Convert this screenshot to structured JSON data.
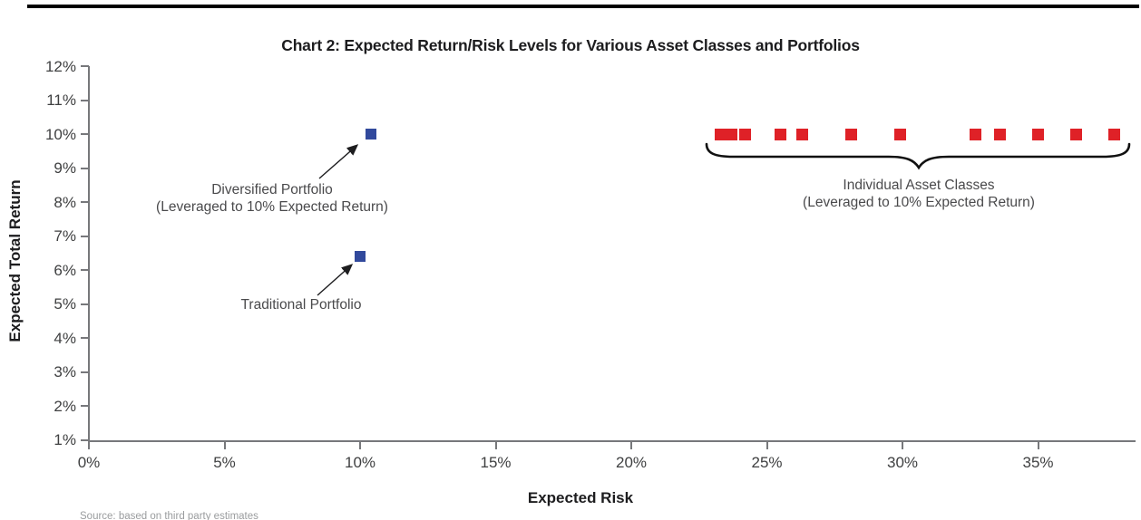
{
  "title": "Chart 2: Expected Return/Risk Levels for Various Asset Classes and Portfolios",
  "source_note": "Source: based on third party estimates",
  "colors": {
    "blue_marker": "#31499c",
    "red_marker": "#df2127",
    "axis_line": "#77787b",
    "tick_text": "#3f4041",
    "heading_text": "#1d1d1f",
    "annotation_text": "#4a4a4c",
    "source_text": "#9a9c9e",
    "top_rule": "#000000"
  },
  "chart_data": {
    "type": "scatter",
    "title": "Chart 2: Expected Return/Risk Levels for Various Asset Classes and Portfolios",
    "xlabel": "Expected Risk",
    "ylabel": "Expected Total Return",
    "xlim": [
      0,
      38.6
    ],
    "ylim": [
      1,
      12
    ],
    "grid": false,
    "legend": false,
    "x_axis": {
      "ticks": [
        {
          "value": 0,
          "label": "0%"
        },
        {
          "value": 5,
          "label": "5%"
        },
        {
          "value": 10,
          "label": "10%"
        },
        {
          "value": 15,
          "label": "15%"
        },
        {
          "value": 20,
          "label": "20%"
        },
        {
          "value": 25,
          "label": "25%"
        },
        {
          "value": 30,
          "label": "30%"
        },
        {
          "value": 35,
          "label": "35%"
        }
      ]
    },
    "y_axis": {
      "ticks": [
        {
          "value": 12,
          "label": "12%"
        },
        {
          "value": 11,
          "label": "11%"
        },
        {
          "value": 10,
          "label": "10%"
        },
        {
          "value": 9,
          "label": "9%"
        },
        {
          "value": 8,
          "label": "8%"
        },
        {
          "value": 7,
          "label": "7%"
        },
        {
          "value": 6,
          "label": "6%"
        },
        {
          "value": 5,
          "label": "5%"
        },
        {
          "value": 4,
          "label": "4%"
        },
        {
          "value": 3,
          "label": "3%"
        },
        {
          "value": 2,
          "label": "2%"
        },
        {
          "value": 1,
          "label": "1%"
        }
      ]
    },
    "series": [
      {
        "name": "Diversified Portfolio (Leveraged to 10% Expected Return)",
        "marker": "square",
        "color": "#31499c",
        "size": 12,
        "points": [
          {
            "x": 10.4,
            "y": 10.0
          }
        ]
      },
      {
        "name": "Traditional Portfolio",
        "marker": "square",
        "color": "#31499c",
        "size": 12,
        "points": [
          {
            "x": 10.0,
            "y": 6.4
          }
        ]
      },
      {
        "name": "Individual Asset Classes (Leveraged to 10% Expected Return)",
        "marker": "square",
        "color": "#df2127",
        "size": 13,
        "points": [
          {
            "x": 23.3,
            "y": 10.0
          },
          {
            "x": 23.7,
            "y": 10.0
          },
          {
            "x": 24.2,
            "y": 10.0
          },
          {
            "x": 25.5,
            "y": 10.0
          },
          {
            "x": 26.3,
            "y": 10.0
          },
          {
            "x": 28.1,
            "y": 10.0
          },
          {
            "x": 29.9,
            "y": 10.0
          },
          {
            "x": 32.7,
            "y": 10.0
          },
          {
            "x": 33.6,
            "y": 10.0
          },
          {
            "x": 35.0,
            "y": 10.0
          },
          {
            "x": 36.4,
            "y": 10.0
          },
          {
            "x": 37.8,
            "y": 10.0
          }
        ]
      }
    ],
    "annotations": [
      {
        "id": "diversified",
        "line1": "Diversified Portfolio",
        "line2": "(Leveraged to 10% Expected Return)"
      },
      {
        "id": "traditional",
        "line1": "Traditional Portfolio",
        "line2": ""
      },
      {
        "id": "asset-classes",
        "line1": "Individual Asset Classes",
        "line2": "(Leveraged to 10% Expected Return)"
      }
    ]
  }
}
